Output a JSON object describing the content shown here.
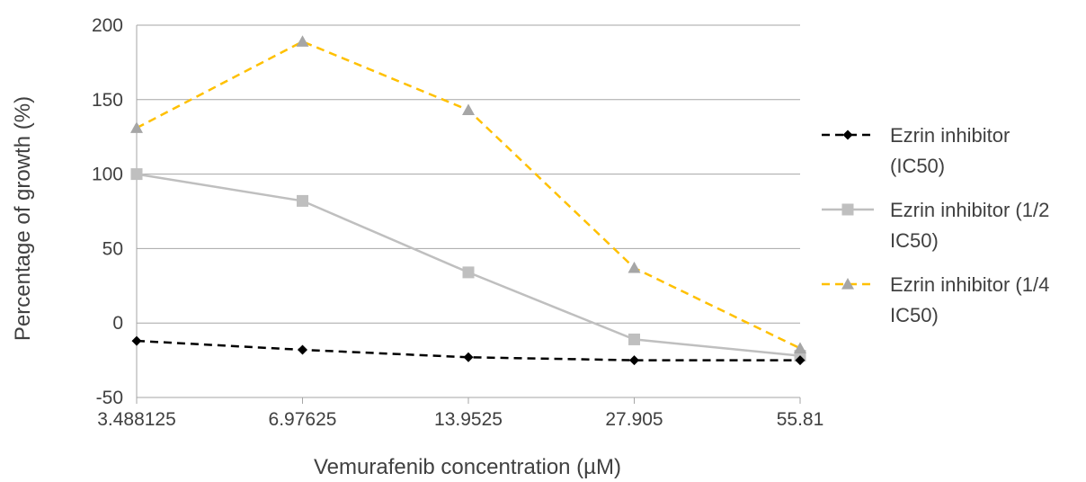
{
  "chart_data": {
    "type": "line",
    "title": "",
    "xlabel": "Vemurafenib concentration (µM)",
    "ylabel": "Percentage of growth (%)",
    "categories": [
      "3.488125",
      "6.97625",
      "13.9525",
      "27.905",
      "55.81"
    ],
    "ylim": [
      -50,
      200
    ],
    "yticks": [
      -50,
      0,
      50,
      100,
      150,
      200
    ],
    "ytick_labels": [
      "-50",
      "0",
      "50",
      "100",
      "150",
      "200"
    ],
    "grid": "horizontal",
    "legend_position": "right",
    "series": [
      {
        "name": "Ezrin inhibitor (IC50)",
        "legend_lines": [
          "Ezrin inhibitor",
          "(IC50)"
        ],
        "values": [
          -12,
          -18,
          -23,
          -25,
          -25
        ],
        "color": "#000000",
        "line_style": "dashed",
        "marker": "diamond"
      },
      {
        "name": "Ezrin inhibitor (1/2 IC50)",
        "legend_lines": [
          "Ezrin inhibitor (1/2",
          "IC50)"
        ],
        "values": [
          100,
          82,
          34,
          -11,
          -22
        ],
        "color": "#bfbfbf",
        "line_style": "solid",
        "marker": "square"
      },
      {
        "name": "Ezrin inhibitor (1/4 IC50)",
        "legend_lines": [
          "Ezrin inhibitor (1/4",
          "IC50)"
        ],
        "values": [
          131,
          189,
          143,
          37,
          -17
        ],
        "color": "#ffc000",
        "line_style": "dashed",
        "marker": "triangle",
        "marker_color": "#a6a6a6"
      }
    ]
  }
}
